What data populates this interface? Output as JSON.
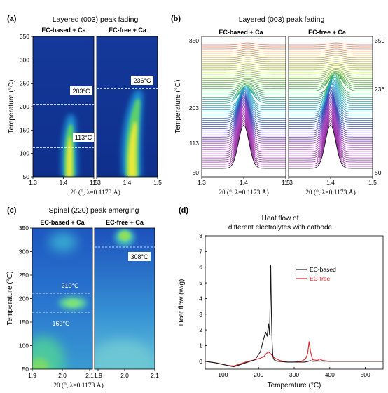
{
  "chart_data": [
    {
      "type": "heatmap",
      "panel_label": "(a)",
      "title": "Layered (003) peak fading",
      "xlabel": "2θ (°, λ=0.1173 Å)",
      "ylabel": "Temperature (°C)",
      "xlim": [
        1.3,
        1.5
      ],
      "ylim": [
        50,
        350
      ],
      "x_ticks": [
        "1.3",
        "1.4",
        "1.5"
      ],
      "y_ticks": [
        50,
        100,
        150,
        200,
        250,
        300,
        350
      ],
      "colorscale": [
        "#123a9c",
        "#1d8fd2",
        "#27c4c0",
        "#5fd26a",
        "#d6e83a",
        "#ffe600"
      ],
      "subpanels": [
        {
          "title": "EC-based + Ca",
          "annotations": [
            {
              "text": "203°C",
              "y": 203
            },
            {
              "text": "113°C",
              "y": 113
            }
          ]
        },
        {
          "title": "EC-free + Ca",
          "annotations": [
            {
              "text": "236°C",
              "y": 236
            }
          ]
        }
      ]
    },
    {
      "type": "line",
      "panel_label": "(b)",
      "title": "Layered (003) peak fading",
      "xlabel": "2θ (°, λ=0.1173 Å)",
      "ylabel": "Temperature (°C)",
      "xlim": [
        1.3,
        1.5
      ],
      "x_ticks": [
        "1.3",
        "1.4",
        "1.5"
      ],
      "subpanels": [
        {
          "title": "EC-based + Ca",
          "y_tick_labels": [
            "350",
            "203",
            "113",
            "50"
          ],
          "fade_temp": 203
        },
        {
          "title": "EC-free + Ca",
          "y_tick_labels": [
            "350",
            "236",
            "50"
          ],
          "fade_temp": 236
        }
      ]
    },
    {
      "type": "heatmap",
      "panel_label": "(c)",
      "title": "Spinel (220) peak emerging",
      "xlabel": "2θ (°, λ=0.1173 Å)",
      "ylabel": "Temperature (°C)",
      "xlim": [
        1.9,
        2.1
      ],
      "ylim": [
        50,
        350
      ],
      "x_ticks": [
        "1.9",
        "2.0",
        "2.1",
        "1.9",
        "2.0",
        "2.1"
      ],
      "y_ticks": [
        50,
        100,
        150,
        200,
        250,
        300,
        350
      ],
      "subpanels": [
        {
          "title": "EC-based + Ca",
          "annotations": [
            {
              "text": "210°C",
              "y": 210
            },
            {
              "text": "169°C",
              "y": 169
            }
          ]
        },
        {
          "title": "EC-free + Ca",
          "annotations": [
            {
              "text": "308°C",
              "y": 308
            }
          ]
        }
      ]
    },
    {
      "type": "line",
      "panel_label": "(d)",
      "title": "Heat flow of",
      "subtitle": "different electrolytes with cathode",
      "xlabel": "Temperature (°C)",
      "ylabel": "Heat flow (w/g)",
      "xlim": [
        50,
        550
      ],
      "ylim": [
        -0.5,
        8
      ],
      "x_ticks": [
        100,
        200,
        300,
        400,
        500
      ],
      "y_ticks": [
        0,
        1,
        2,
        3,
        4,
        5,
        6,
        7,
        8
      ],
      "legend_position": "upper-right",
      "series": [
        {
          "name": "EC-based",
          "color": "#1a1a1a",
          "x": [
            50,
            80,
            110,
            130,
            150,
            170,
            190,
            205,
            215,
            220,
            224,
            228,
            231,
            234,
            236,
            238,
            240,
            242,
            246,
            255,
            280,
            310,
            330,
            340,
            345,
            350,
            370,
            400,
            450,
            500,
            550
          ],
          "y": [
            0.0,
            -0.1,
            -0.25,
            -0.35,
            -0.2,
            -0.05,
            0.1,
            0.6,
            1.5,
            1.85,
            1.6,
            2.4,
            1.7,
            6.1,
            3.0,
            1.2,
            0.4,
            0.15,
            0.05,
            0.0,
            -0.05,
            -0.05,
            -0.05,
            0.0,
            0.05,
            0.0,
            0.02,
            0.0,
            0.0,
            0.0,
            0.0
          ]
        },
        {
          "name": "EC-free",
          "color": "#e0202a",
          "x": [
            50,
            80,
            110,
            130,
            150,
            170,
            190,
            205,
            215,
            222,
            228,
            235,
            245,
            260,
            280,
            300,
            320,
            332,
            338,
            342,
            346,
            352,
            365,
            372,
            380,
            400,
            450,
            500,
            550
          ],
          "y": [
            0.0,
            -0.1,
            -0.25,
            -0.3,
            -0.15,
            0.0,
            0.1,
            0.2,
            0.3,
            0.5,
            0.6,
            0.45,
            0.2,
            0.05,
            -0.05,
            -0.05,
            0.0,
            0.15,
            0.5,
            1.25,
            0.6,
            0.1,
            0.05,
            0.15,
            0.05,
            0.0,
            0.0,
            0.0,
            0.0
          ]
        }
      ]
    }
  ]
}
